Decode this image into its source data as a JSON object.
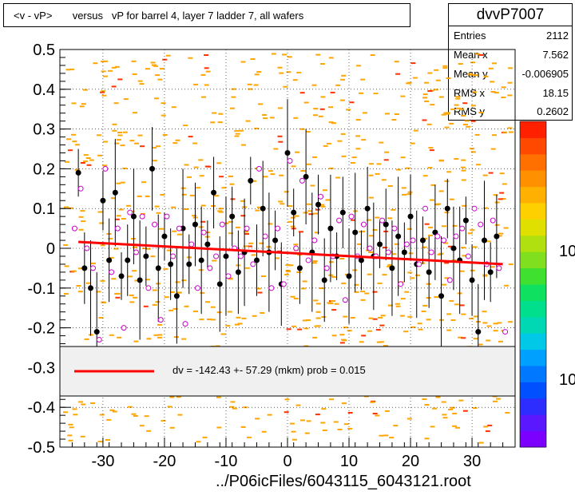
{
  "title": "<v - vP>       versus   vP for barrel 4, layer 7 ladder 7, all wafers",
  "stats": {
    "name": "dvvP7007",
    "rows": [
      {
        "label": "Entries",
        "value": "2112"
      },
      {
        "label": "Mean x",
        "value": "7.562"
      },
      {
        "label": "Mean y",
        "value": "-0.006905"
      },
      {
        "label": "RMS x",
        "value": "18.15"
      },
      {
        "label": "RMS y",
        "value": "0.2602"
      }
    ]
  },
  "fit_legend": "dv = -142.43 +- 57.29 (mkm) prob = 0.015",
  "footer": "../P06icFiles/6043115_6043121.root",
  "palette_labels": [
    "10",
    "10"
  ],
  "colors": {
    "fit": "#ff0000",
    "hist": "#ffa500",
    "open_marker": "#cc00cc",
    "filled_marker": "#000000"
  },
  "chart_data": {
    "type": "scatter",
    "title": "<v - vP>       versus   vP for barrel 4, layer 7 ladder 7, all wafers",
    "xlim": [
      -37,
      37
    ],
    "ylim": [
      -0.5,
      0.5
    ],
    "xticks": [
      -30,
      -20,
      -10,
      0,
      10,
      20,
      30
    ],
    "xtick_labels": [
      "-30",
      "-20",
      "-10",
      "0",
      "10",
      "20",
      "30"
    ],
    "yticks": [
      -0.5,
      -0.4,
      -0.3,
      -0.2,
      -0.1,
      0,
      0.1,
      0.2,
      0.3,
      0.4,
      0.5
    ],
    "ytick_labels": [
      "-0.5",
      "-0.4",
      "-0.3",
      "-0.2",
      "-0.1",
      "0",
      "0.1",
      "0.2",
      "0.3",
      "0.4",
      "0.5"
    ],
    "grid": true,
    "fit_line": {
      "x": [
        -34,
        35
      ],
      "y": [
        0.016,
        -0.04
      ]
    },
    "filled_points": [
      [
        -34,
        0.19
      ],
      [
        -33,
        -0.05
      ],
      [
        -32,
        -0.1
      ],
      [
        -31,
        -0.21
      ],
      [
        -30,
        0.12
      ],
      [
        -29,
        -0.03
      ],
      [
        -28,
        0.14
      ],
      [
        -27,
        -0.07
      ],
      [
        -26,
        -0.03
      ],
      [
        -25,
        0.08
      ],
      [
        -24,
        -0.08
      ],
      [
        -23,
        -0.02
      ],
      [
        -22,
        0.2
      ],
      [
        -21,
        -0.05
      ],
      [
        -20,
        0.03
      ],
      [
        -19,
        -0.04
      ],
      [
        -18,
        -0.12
      ],
      [
        -17,
        0.05
      ],
      [
        -16,
        -0.04
      ],
      [
        -15,
        0.06
      ],
      [
        -14,
        -0.03
      ],
      [
        -13,
        0.01
      ],
      [
        -12,
        0.14
      ],
      [
        -11,
        -0.09
      ],
      [
        -10,
        -0.02
      ],
      [
        -9,
        0.08
      ],
      [
        -8,
        -0.06
      ],
      [
        -7,
        -0.01
      ],
      [
        -6,
        0.17
      ],
      [
        -5,
        -0.03
      ],
      [
        -4,
        0.1
      ],
      [
        -3,
        -0.01
      ],
      [
        -2,
        0.02
      ],
      [
        -1,
        -0.09
      ],
      [
        0,
        0.24
      ],
      [
        1,
        0.09
      ],
      [
        2,
        -0.05
      ],
      [
        3,
        0.18
      ],
      [
        4,
        -0.01
      ],
      [
        5,
        0.11
      ],
      [
        6,
        -0.08
      ],
      [
        7,
        0.05
      ],
      [
        8,
        -0.02
      ],
      [
        9,
        0.09
      ],
      [
        10,
        -0.07
      ],
      [
        11,
        0.04
      ],
      [
        12,
        -0.03
      ],
      [
        13,
        0.1
      ],
      [
        14,
        -0.02
      ],
      [
        15,
        0.01
      ],
      [
        16,
        0.06
      ],
      [
        17,
        -0.05
      ],
      [
        18,
        0.03
      ],
      [
        19,
        -0.01
      ],
      [
        20,
        0.08
      ],
      [
        21,
        -0.04
      ],
      [
        22,
        0.02
      ],
      [
        23,
        -0.06
      ],
      [
        24,
        0.04
      ],
      [
        25,
        -0.12
      ],
      [
        26,
        0.1
      ],
      [
        27,
        0.0
      ],
      [
        28,
        -0.03
      ],
      [
        29,
        0.07
      ],
      [
        30,
        -0.08
      ],
      [
        31,
        -0.21
      ],
      [
        32,
        0.02
      ],
      [
        33,
        -0.06
      ],
      [
        34,
        0.03
      ]
    ],
    "open_points": [
      [
        -35,
        0.05
      ],
      [
        -34,
        0.15
      ],
      [
        -33,
        0.0
      ],
      [
        -32,
        -0.05
      ],
      [
        -31,
        -0.23
      ],
      [
        -30,
        0.2
      ],
      [
        -29,
        -0.06
      ],
      [
        -28,
        0.05
      ],
      [
        -27,
        -0.2
      ],
      [
        -26,
        0.09
      ],
      [
        -25,
        -0.01
      ],
      [
        -24,
        0.08
      ],
      [
        -23,
        -0.1
      ],
      [
        -22,
        0.06
      ],
      [
        -21,
        -0.18
      ],
      [
        -20,
        0.08
      ],
      [
        -19,
        -0.02
      ],
      [
        -18,
        0.05
      ],
      [
        -17,
        -0.19
      ],
      [
        -16,
        0.01
      ],
      [
        -15,
        -0.1
      ],
      [
        -14,
        0.04
      ],
      [
        -13,
        -0.05
      ],
      [
        -12,
        -0.02
      ],
      [
        -11,
        0.06
      ],
      [
        -10,
        -0.07
      ],
      [
        -9,
        0.0
      ],
      [
        -8,
        -0.02
      ],
      [
        -7,
        0.05
      ],
      [
        -6,
        -0.04
      ],
      [
        -5,
        0.2
      ],
      [
        -4,
        0.03
      ],
      [
        -3,
        -0.1
      ],
      [
        -2,
        0.05
      ],
      [
        -1,
        -0.09
      ],
      [
        0,
        0.22
      ],
      [
        1,
        0.0
      ],
      [
        2,
        0.17
      ],
      [
        3,
        -0.03
      ],
      [
        4,
        0.02
      ],
      [
        5,
        0.13
      ],
      [
        6,
        -0.05
      ],
      [
        7,
        -0.02
      ],
      [
        8,
        0.07
      ],
      [
        9,
        -0.13
      ],
      [
        10,
        0.08
      ],
      [
        11,
        -0.02
      ],
      [
        12,
        0.06
      ],
      [
        13,
        0.0
      ],
      [
        14,
        -0.02
      ],
      [
        15,
        0.07
      ],
      [
        16,
        -0.01
      ],
      [
        17,
        0.05
      ],
      [
        18,
        -0.09
      ],
      [
        19,
        0.01
      ],
      [
        20,
        0.02
      ],
      [
        21,
        -0.04
      ],
      [
        22,
        0.1
      ],
      [
        23,
        -0.01
      ],
      [
        24,
        0.03
      ],
      [
        25,
        0.02
      ],
      [
        26,
        -0.08
      ],
      [
        27,
        0.03
      ],
      [
        28,
        0.05
      ],
      [
        29,
        -0.02
      ],
      [
        30,
        0.1
      ],
      [
        31,
        0.06
      ],
      [
        32,
        -0.04
      ],
      [
        33,
        0.07
      ],
      [
        34,
        -0.05
      ],
      [
        35,
        -0.21
      ]
    ]
  }
}
